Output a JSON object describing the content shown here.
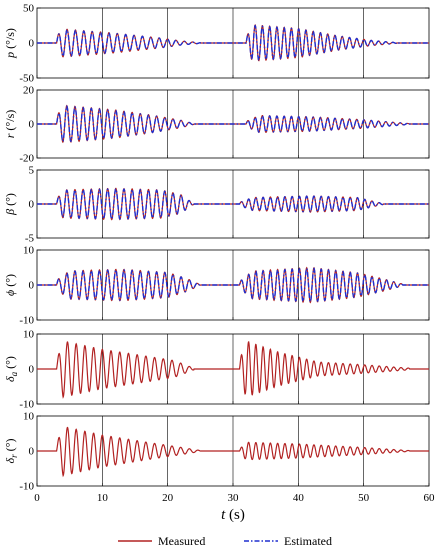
{
  "chart_data": {
    "type": "line",
    "x": {
      "label_symbol": "t",
      "label_unit": "(s)",
      "ticks": [
        0,
        10,
        20,
        30,
        40,
        50,
        60
      ],
      "lim": [
        0,
        60
      ]
    },
    "series": [
      {
        "name": "Measured",
        "color": "#b22222"
      },
      {
        "name": "Estimated",
        "color": "#1f2fcf"
      }
    ],
    "legend": {
      "position": "bottom-center",
      "measured_label": "Measured",
      "estimated_label": "Estimated"
    },
    "panels": [
      {
        "id": "p",
        "label_symbol": "p",
        "label_unit": "(°/s)",
        "ylim": [
          -50,
          50
        ],
        "yticks": [
          -50,
          0,
          50
        ],
        "series": [
          "Measured",
          "Estimated"
        ],
        "segments": [
          {
            "t0": 3,
            "t1": 25,
            "f": 0.78,
            "A": 20,
            "env": [
              [
                3,
                0.5
              ],
              [
                4,
                1
              ],
              [
                12,
                0.7
              ],
              [
                19,
                0.35
              ],
              [
                22,
                0.15
              ],
              [
                25,
                0.02
              ]
            ]
          },
          {
            "t0": 32,
            "t1": 55,
            "f": 0.9,
            "A": 26,
            "env": [
              [
                32,
                0.3
              ],
              [
                33,
                1
              ],
              [
                40,
                0.8
              ],
              [
                46,
                0.4
              ],
              [
                51,
                0.15
              ],
              [
                55,
                0.02
              ]
            ]
          }
        ]
      },
      {
        "id": "r",
        "label_symbol": "r",
        "label_unit": "(°/s)",
        "ylim": [
          -20,
          20
        ],
        "yticks": [
          -20,
          0,
          20
        ],
        "series": [
          "Measured",
          "Estimated"
        ],
        "segments": [
          {
            "t0": 3,
            "t1": 24,
            "f": 0.8,
            "A": 11,
            "env": [
              [
                3,
                0.4
              ],
              [
                4,
                1
              ],
              [
                12,
                0.75
              ],
              [
                18,
                0.45
              ],
              [
                22,
                0.2
              ],
              [
                24,
                0.02
              ]
            ]
          },
          {
            "t0": 32,
            "t1": 57,
            "f": 0.9,
            "A": 5,
            "env": [
              [
                32,
                0.3
              ],
              [
                34,
                1
              ],
              [
                42,
                0.85
              ],
              [
                50,
                0.5
              ],
              [
                57,
                0.05
              ]
            ]
          }
        ]
      },
      {
        "id": "beta",
        "label_symbol": "β",
        "label_unit": "(°)",
        "ylim": [
          -5,
          5
        ],
        "yticks": [
          -5,
          0,
          5
        ],
        "series": [
          "Measured",
          "Estimated"
        ],
        "segments": [
          {
            "t0": 3,
            "t1": 24,
            "f": 0.8,
            "A": 2.3,
            "env": [
              [
                3,
                0.3
              ],
              [
                4,
                0.9
              ],
              [
                12,
                1
              ],
              [
                19,
                0.9
              ],
              [
                22,
                0.6
              ],
              [
                24,
                0.02
              ]
            ]
          },
          {
            "t0": 31,
            "t1": 53,
            "f": 0.9,
            "A": 1.2,
            "env": [
              [
                31,
                0.2
              ],
              [
                33,
                0.8
              ],
              [
                42,
                1
              ],
              [
                49,
                0.8
              ],
              [
                53,
                0.05
              ]
            ]
          }
        ]
      },
      {
        "id": "phi",
        "label_symbol": "ϕ",
        "label_unit": "(°)",
        "ylim": [
          -10,
          10
        ],
        "yticks": [
          -10,
          0,
          10
        ],
        "series": [
          "Measured",
          "Estimated"
        ],
        "segments": [
          {
            "t0": 3,
            "t1": 25,
            "f": 0.8,
            "A": 4.5,
            "env": [
              [
                3,
                0.3
              ],
              [
                5,
                0.9
              ],
              [
                13,
                1
              ],
              [
                20,
                0.8
              ],
              [
                23,
                0.4
              ],
              [
                25,
                0.02
              ]
            ]
          },
          {
            "t0": 31,
            "t1": 56,
            "f": 0.9,
            "A": 5,
            "env": [
              [
                31,
                0.2
              ],
              [
                33,
                0.8
              ],
              [
                42,
                1
              ],
              [
                49,
                0.7
              ],
              [
                53,
                0.35
              ],
              [
                56,
                0.05
              ]
            ]
          }
        ]
      },
      {
        "id": "delta_a",
        "label_symbol": "δ",
        "label_sub": "a",
        "label_unit": "(°)",
        "ylim": [
          -10,
          10
        ],
        "yticks": [
          -10,
          0,
          10
        ],
        "series": [
          "Measured"
        ],
        "segments": [
          {
            "t0": 3,
            "t1": 24,
            "f": 0.75,
            "A": 8,
            "env": [
              [
                3,
                0.3
              ],
              [
                4,
                1
              ],
              [
                10,
                0.7
              ],
              [
                17,
                0.45
              ],
              [
                21,
                0.3
              ],
              [
                24,
                0.03
              ]
            ]
          },
          {
            "t0": 31,
            "t1": 57,
            "f": 0.9,
            "A": 8,
            "env": [
              [
                31,
                0.3
              ],
              [
                32,
                1
              ],
              [
                37,
                0.6
              ],
              [
                43,
                0.25
              ],
              [
                50,
                0.15
              ],
              [
                57,
                0.03
              ]
            ]
          }
        ]
      },
      {
        "id": "delta_r",
        "label_symbol": "δ",
        "label_sub": "r",
        "label_unit": "(°)",
        "ylim": [
          -10,
          10
        ],
        "yticks": [
          -10,
          0,
          10
        ],
        "series": [
          "Measured"
        ],
        "segments": [
          {
            "t0": 3,
            "t1": 25,
            "f": 0.75,
            "A": 7,
            "env": [
              [
                3,
                0.3
              ],
              [
                4,
                1
              ],
              [
                10,
                0.65
              ],
              [
                17,
                0.35
              ],
              [
                22,
                0.15
              ],
              [
                25,
                0.02
              ]
            ]
          },
          {
            "t0": 31,
            "t1": 57,
            "f": 0.9,
            "A": 2.5,
            "env": [
              [
                31,
                0.2
              ],
              [
                32,
                1
              ],
              [
                40,
                0.8
              ],
              [
                50,
                0.4
              ],
              [
                57,
                0.05
              ]
            ]
          }
        ]
      }
    ]
  }
}
